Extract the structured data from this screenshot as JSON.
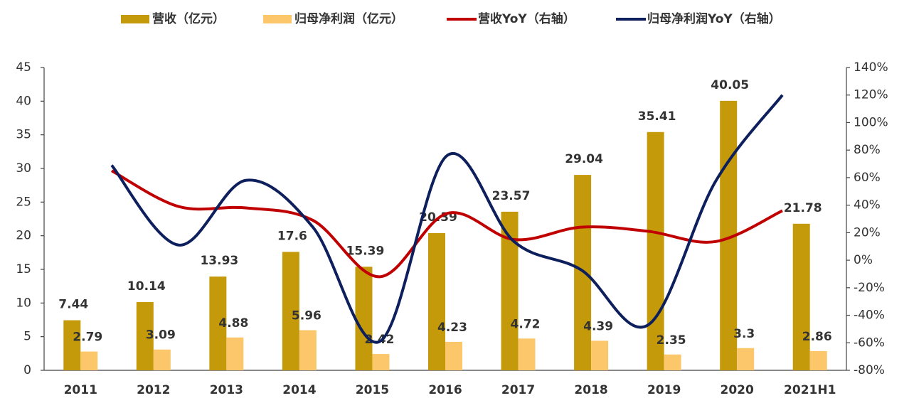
{
  "chart_data": {
    "type": "bar-line",
    "categories": [
      "2011",
      "2012",
      "2013",
      "2014",
      "2015",
      "2016",
      "2017",
      "2018",
      "2019",
      "2020",
      "2021H1"
    ],
    "series": [
      {
        "name": "营收（亿元）",
        "color": "#c59a0a",
        "type": "bar",
        "values": [
          7.44,
          10.14,
          13.93,
          17.6,
          15.39,
          20.39,
          23.57,
          29.04,
          35.41,
          40.05,
          21.78
        ]
      },
      {
        "name": "归母净利润（亿元）",
        "color": "#fcc66a",
        "type": "bar",
        "values": [
          2.79,
          3.09,
          4.88,
          5.96,
          2.42,
          4.23,
          4.72,
          4.39,
          2.35,
          3.3,
          2.86
        ]
      },
      {
        "name": "营收YoY（右轴）",
        "color": "#c00000",
        "type": "line",
        "axis": "y2",
        "values": [
          65,
          39,
          38,
          29,
          -12,
          34,
          15,
          24,
          21,
          13.5,
          36
        ]
      },
      {
        "name": "归母净利润YoY（右轴）",
        "color": "#0d1f5c",
        "type": "line",
        "axis": "y2",
        "values": [
          69,
          11,
          58,
          24,
          -59,
          76,
          13.5,
          -7,
          -47,
          57,
          120
        ]
      }
    ],
    "ylim": [
      0,
      45
    ],
    "yticks": [
      0,
      5,
      10,
      15,
      20,
      25,
      30,
      35,
      40,
      45
    ],
    "y2lim": [
      -80,
      140
    ],
    "y2ticks": [
      {
        "value": -80,
        "label": "-80%"
      },
      {
        "value": -60,
        "label": "-60%"
      },
      {
        "value": -40,
        "label": "-40%"
      },
      {
        "value": -20,
        "label": "-20%"
      },
      {
        "value": 0,
        "label": "0%"
      },
      {
        "value": 20,
        "label": "20%"
      },
      {
        "value": 40,
        "label": "40%"
      },
      {
        "value": 60,
        "label": "60%"
      },
      {
        "value": 80,
        "label": "80%"
      },
      {
        "value": 100,
        "label": "100%"
      },
      {
        "value": 120,
        "label": "120%"
      },
      {
        "value": 140,
        "label": "140%"
      }
    ],
    "legend": "top"
  }
}
